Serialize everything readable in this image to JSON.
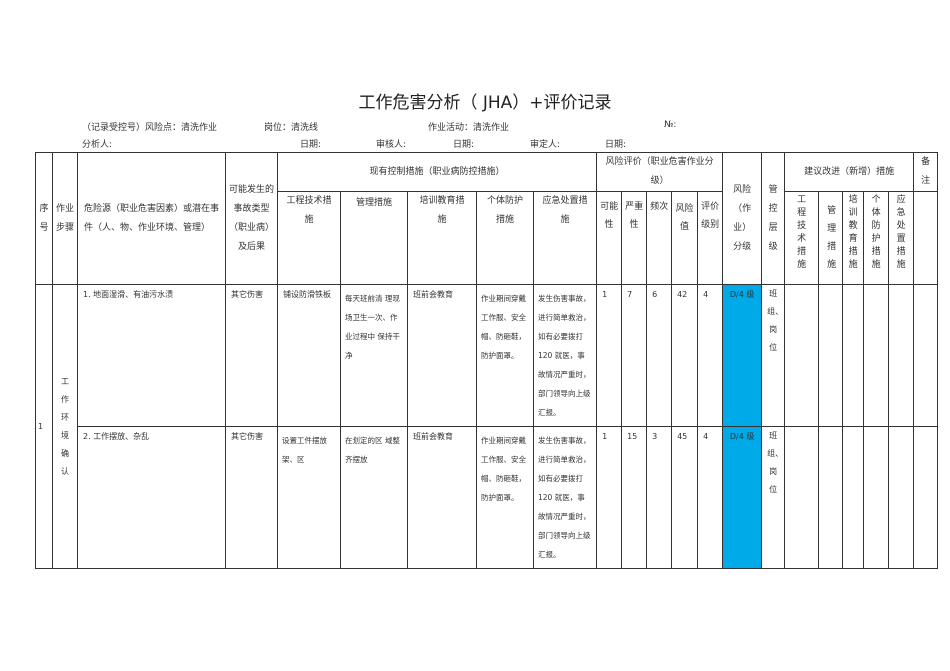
{
  "title": "工作危害分析（  JHA）+评价记录",
  "meta": {
    "record": "（记录受控号）风险点：清洗作业",
    "post": "岗位：清洗线",
    "activity": "作业活动：清洗作业",
    "no": "№:",
    "analyst": "分析人:",
    "date1": "日期:",
    "reviewer": "审核人:",
    "date2": "日期:",
    "approver": "审定人:",
    "date3": "日期:"
  },
  "headers": {
    "seq": "序号",
    "step": "作业步骤",
    "hazard": "危险源（职业危害因素）或潜在事件（人、物、作业环境、管理）",
    "accident": "可能发生的事故类型（职业病）及后果",
    "controls": "现有控制措施（职业病防控措施）",
    "eng": "工程技术措施",
    "mgmt": "管理措施",
    "train": "培训教育措施",
    "ppe": "个体防护措施",
    "emerg": "应急处置措施",
    "eval": "风险评价（职业危害作业分级）",
    "l": "可能性",
    "s": "严重性",
    "f": "频次",
    "r": "风险值",
    "lvl": "评价级别",
    "grade": "风险（作业）分级",
    "ctrl": "管控层级",
    "improve": "建议改进（新增）措施",
    "i_eng": "工程技术措施",
    "i_mgmt": "管理措施",
    "i_train": "培训教育措施",
    "i_ppe": "个体防护措施",
    "i_emerg": "应急处置措施",
    "remark": "备注"
  },
  "rows": [
    {
      "seq": "1",
      "step": "工作环境确认",
      "hazard": "1. 地面湿滑、有油污水渍",
      "accident": "其它伤害",
      "eng": "铺设防滑铁板",
      "mgmt": "每天班前清  理现场卫生一次、作业过程中  保持干净",
      "train": "班前会教育",
      "ppe": "作业期间穿戴工作服、安全帽、防砸鞋，防护面罩。",
      "emerg": "发生伤害事故，进行简单救治，如有必要拨打 120 就医，事故情况严重时，部门领导向上级汇报。",
      "l": "1",
      "s": "7",
      "f": "6",
      "r": "42",
      "lvl": "4",
      "grade": "D/4 级",
      "ctrl": "班组、岗位"
    },
    {
      "hazard": "2. 工作摆放、杂乱",
      "accident": "其它伤害",
      "eng": "设置工件摆放架、区",
      "mgmt": "在划定的区  域整齐摆放",
      "train": "班前会教育",
      "ppe": "作业期间穿戴工作服、安全帽、防砸鞋，防护面罩。",
      "emerg": "发生伤害事故，进行简单救治，如有必要拨打 120 就医，事故情况严重时，部门领导向上级汇报。",
      "l": "1",
      "s": "15",
      "f": "3",
      "r": "45",
      "lvl": "4",
      "grade": "D/4 级",
      "ctrl": "班组、岗位"
    }
  ],
  "colors": {
    "grade_highlight": "#00a9e8"
  }
}
